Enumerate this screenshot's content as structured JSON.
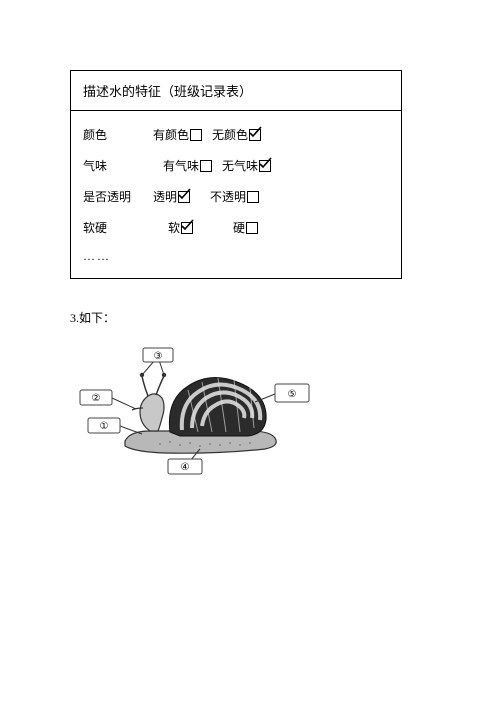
{
  "table": {
    "title": "描述水的特征（班级记录表）",
    "rows": [
      {
        "label": "颜色",
        "opt1": "有颜色",
        "opt1_checked": false,
        "opt2": "无颜色",
        "opt2_checked": true,
        "label_w": 70,
        "gap": 2
      },
      {
        "label": "气味",
        "opt1": "有气味",
        "opt1_checked": false,
        "opt2": "无气味",
        "opt2_checked": true,
        "label_w": 80,
        "gap": 2
      },
      {
        "label": "是否透明",
        "opt1": "透明",
        "opt1_checked": true,
        "opt2": "不透明",
        "opt2_checked": false,
        "label_w": 70,
        "gap": 12
      },
      {
        "label": "软硬",
        "opt1": "软",
        "opt1_checked": true,
        "opt2": "硬",
        "opt2_checked": false,
        "label_w": 85,
        "gap": 32
      }
    ],
    "ellipsis": "……"
  },
  "q3": {
    "text": "3.如下："
  },
  "diagram": {
    "labels": {
      "l1": "①",
      "l2": "②",
      "l3": "③",
      "l4": "④",
      "l5": "⑤"
    },
    "colors": {
      "line": "#333333",
      "box_fill": "#ffffff",
      "box_stroke": "#444444",
      "shell_dark": "#2b2b2b",
      "shell_light": "#e8e8e8",
      "body": "#a8a8a8",
      "body_stroke": "#333333"
    }
  }
}
